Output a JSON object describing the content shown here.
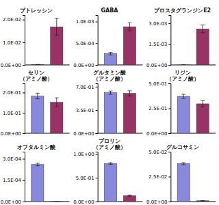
{
  "chart_data": [
    {
      "type": "bar",
      "title": "ブトレッシン",
      "categories": [
        null,
        null
      ],
      "values": [
        0.00018,
        0.0168
      ],
      "errors": [
        4e-05,
        0.0038
      ],
      "colors": [
        "#8888dd",
        "#993366"
      ],
      "ylim": [
        0,
        0.022
      ],
      "yticks": [
        {
          "value": 0.0,
          "label": "0.0E+00"
        },
        {
          "value": 0.01,
          "label": "1.0E-02"
        },
        {
          "value": 0.02,
          "label": "2.0E-02"
        }
      ],
      "tick_labels": "y"
    },
    {
      "type": "bar",
      "title": "GABA",
      "categories": [
        null,
        null
      ],
      "values": [
        0.00026,
        0.00088
      ],
      "errors": [
        3e-05,
        9e-05
      ],
      "colors": [
        "#8888dd",
        "#993366"
      ],
      "ylim": [
        0,
        0.00115
      ],
      "yticks": [
        {
          "value": 0.0,
          "label": "0.0E+00"
        },
        {
          "value": 0.0005,
          "label": "5.0E-04"
        },
        {
          "value": 0.001,
          "label": "1.0E-03"
        }
      ],
      "tick_labels": "y"
    },
    {
      "type": "bar",
      "title": "プロスタグランジンE2",
      "categories": [
        null,
        null
      ],
      "values": [
        1.5e-06,
        0.0026
      ],
      "errors": [
        3e-07,
        0.00028
      ],
      "colors": [
        "#8888dd",
        "#993366"
      ],
      "ylim": [
        0,
        0.0036
      ],
      "yticks": [
        {
          "value": 0.0,
          "label": "0.0E+00"
        },
        {
          "value": 0.0015,
          "label": "1.5E-03"
        },
        {
          "value": 0.003,
          "label": "3.0E-03"
        }
      ],
      "tick_labels": "y"
    },
    {
      "type": "bar",
      "title": "セリン\n（アミノ酸）",
      "categories": [
        null,
        null
      ],
      "values": [
        0.183,
        0.152
      ],
      "errors": [
        0.014,
        0.022
      ],
      "colors": [
        "#8888dd",
        "#993366"
      ],
      "ylim": [
        0,
        0.245
      ],
      "yticks": [
        {
          "value": 0.0,
          "label": "0.0E+00"
        },
        {
          "value": 0.1,
          "label": "1.0E-01"
        },
        {
          "value": 0.2,
          "label": "2.0E-01"
        }
      ],
      "tick_labels": "y"
    },
    {
      "type": "bar",
      "title": "グルタミン酸\n（アミノ酸）",
      "categories": [
        null,
        null
      ],
      "values": [
        0.61,
        0.6
      ],
      "errors": [
        0.025,
        0.038
      ],
      "colors": [
        "#8888dd",
        "#993366"
      ],
      "ylim": [
        0,
        0.75
      ],
      "yticks": [
        {
          "value": 0.0,
          "label": "0.0E+00"
        },
        {
          "value": 0.35,
          "label": "3.5E-01"
        },
        {
          "value": 0.7,
          "label": "7.0E-01"
        }
      ],
      "tick_labels": "y"
    },
    {
      "type": "bar",
      "title": "リジン\n（アミノ酸）",
      "categories": [
        null,
        null
      ],
      "values": [
        0.37,
        0.295
      ],
      "errors": [
        0.02,
        0.032
      ],
      "colors": [
        "#8888dd",
        "#993366"
      ],
      "ylim": [
        0,
        0.5
      ],
      "yticks": [
        {
          "value": 0.0,
          "label": "0.0E+00"
        },
        {
          "value": 0.25,
          "label": "2.5E-01"
        },
        {
          "value": 0.5,
          "label": "5.0E-01"
        }
      ],
      "tick_labels": "y"
    },
    {
      "type": "bar",
      "title": "オフタルミン酸",
      "categories": [
        null,
        null
      ],
      "values": [
        0.00026,
        7e-07
      ],
      "errors": [
        9e-06,
        1e-07
      ],
      "colors": [
        "#8888dd",
        "#993366"
      ],
      "ylim": [
        0,
        0.00035
      ],
      "yticks": [
        {
          "value": 0.0,
          "label": "0.0E+00"
        },
        {
          "value": 0.00015,
          "label": "1.5E-04"
        },
        {
          "value": 0.0003,
          "label": "3.0E-04"
        }
      ],
      "tick_labels": "y"
    },
    {
      "type": "bar",
      "title": "プロリン\n（アミノ酸）",
      "categories": [
        null,
        null
      ],
      "values": [
        0.8,
        0.125
      ],
      "errors": [
        0.018,
        0.014
      ],
      "colors": [
        "#8888dd",
        "#993366"
      ],
      "ylim": [
        0,
        1.05
      ],
      "yticks": [
        {
          "value": 0.0,
          "label": "0.0E+00"
        },
        {
          "value": 0.5,
          "label": "5.0E-01"
        },
        {
          "value": 1.0,
          "label": "1.0E+00"
        }
      ],
      "tick_labels": "y"
    },
    {
      "type": "bar",
      "title": "グルコサミン",
      "categories": [
        null,
        null
      ],
      "values": [
        0.038,
        0.00085
      ],
      "errors": [
        0.001,
        8e-05
      ],
      "colors": [
        "#8888dd",
        "#993366"
      ],
      "ylim": [
        0,
        0.05
      ],
      "yticks": [
        {
          "value": 0.0,
          "label": "0.0E+00"
        },
        {
          "value": 0.025,
          "label": "2.5E-02"
        },
        {
          "value": 0.05,
          "label": "5.0E-02"
        }
      ],
      "tick_labels": "y"
    }
  ]
}
